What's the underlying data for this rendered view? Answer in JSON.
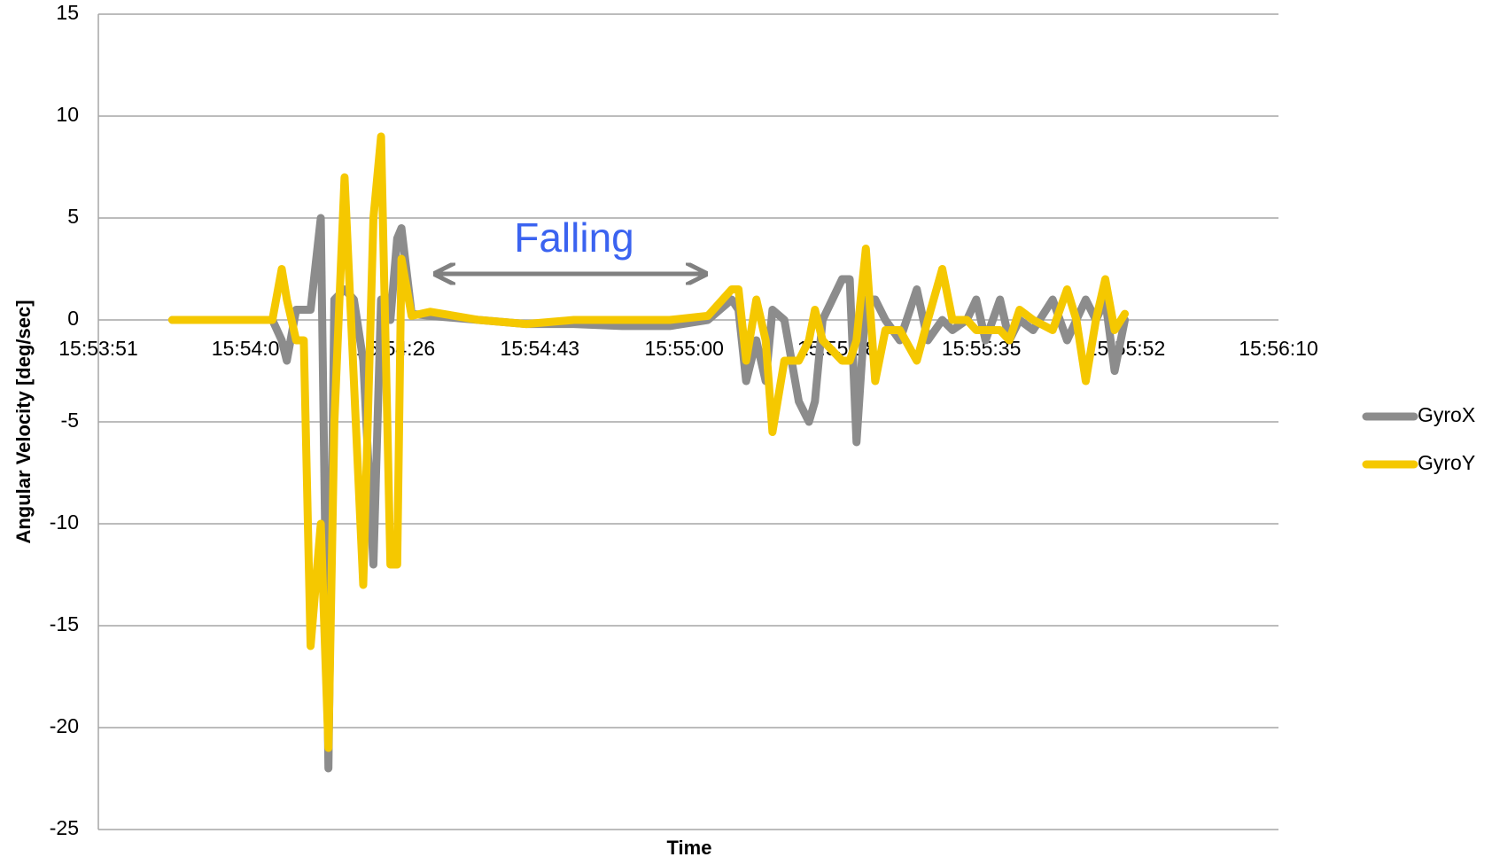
{
  "chart_data": {
    "type": "line",
    "xlabel": "Time",
    "ylabel": "Angular Velocity [deg/sec]",
    "annotation": "Falling",
    "x": [
      57239.7,
      57247.6,
      57251.5,
      57252.6,
      57253.2,
      57254.3,
      57255.2,
      57256.0,
      57257.2,
      57258.1,
      57258.8,
      57260.0,
      57261.1,
      57262.2,
      57263.4,
      57264.3,
      57265.4,
      57266.2,
      57266.7,
      57267.9,
      57270.1,
      57275.8,
      57281.4,
      57287.0,
      57292.7,
      57298.3,
      57302.8,
      57305.6,
      57306.4,
      57307.3,
      57308.5,
      57309.6,
      57310.4,
      57311.8,
      57313.5,
      57314.7,
      57315.4,
      57316.3,
      57318.6,
      57319.5,
      57320.3,
      57321.4,
      57322.5,
      57323.7,
      57325.4,
      57327.4,
      57328.7,
      57330.4,
      57331.6,
      57333.3,
      57334.4,
      57335.5,
      57337.2,
      57338.3,
      57339.5,
      57341.1,
      57343.4,
      57345.1,
      57346.2,
      57347.3,
      57348.5,
      57349.6,
      57350.7,
      57351.9
    ],
    "series": [
      {
        "name": "GyroX",
        "color": "#8c8c8c",
        "values": [
          0,
          0,
          0,
          -1,
          -2,
          0.5,
          0.5,
          0.5,
          5,
          -22,
          1,
          1.5,
          1,
          -2,
          -12,
          1,
          0,
          4,
          4.5,
          0.3,
          0.2,
          0,
          -0.2,
          -0.2,
          -0.3,
          -0.3,
          0,
          1,
          0.5,
          -3,
          -1,
          -3,
          0.5,
          0,
          -4,
          -5,
          -4,
          0,
          2,
          2,
          -6,
          1,
          1,
          0,
          -1,
          1.5,
          -1,
          0,
          -0.5,
          0,
          1,
          -1,
          1,
          -1,
          0,
          -0.5,
          1,
          -1,
          0,
          1,
          0,
          1,
          -2.5,
          0
        ]
      },
      {
        "name": "GyroY",
        "color": "#f5c800",
        "values": [
          0,
          0,
          0,
          2.5,
          1,
          -1,
          -1,
          -16,
          -10,
          -21,
          -5,
          7,
          -3,
          -13,
          5,
          9,
          -12,
          -12,
          3,
          0.2,
          0.4,
          0,
          -0.2,
          0,
          0,
          0,
          0.2,
          1.5,
          1.5,
          -2,
          1,
          -1,
          -5.5,
          -2,
          -2,
          -1,
          0.5,
          -1,
          -2,
          -2,
          -1,
          3.5,
          -3,
          -0.5,
          -0.5,
          -2,
          0,
          2.5,
          0,
          0,
          -0.5,
          -0.5,
          -0.5,
          -1,
          0.5,
          0,
          -0.5,
          1.5,
          0,
          -3,
          0,
          2,
          -0.5,
          0.3
        ]
      }
    ],
    "xlim": [
      57231,
      57370
    ],
    "xticks": [
      {
        "value": 57231,
        "label": "15:53:51"
      },
      {
        "value": 57249,
        "label": "15:54:09"
      },
      {
        "value": 57266,
        "label": "15:54:26"
      },
      {
        "value": 57283,
        "label": "15:54:43"
      },
      {
        "value": 57300,
        "label": "15:55:00"
      },
      {
        "value": 57318,
        "label": "15:55:18"
      },
      {
        "value": 57335,
        "label": "15:55:35"
      },
      {
        "value": 57352,
        "label": "15:55:52"
      },
      {
        "value": 57370,
        "label": "15:56:10"
      }
    ],
    "ylim": [
      -25,
      15
    ],
    "yticks": [
      -25,
      -20,
      -15,
      -10,
      -5,
      0,
      5,
      10,
      15
    ],
    "grid": true,
    "legend": "right"
  }
}
